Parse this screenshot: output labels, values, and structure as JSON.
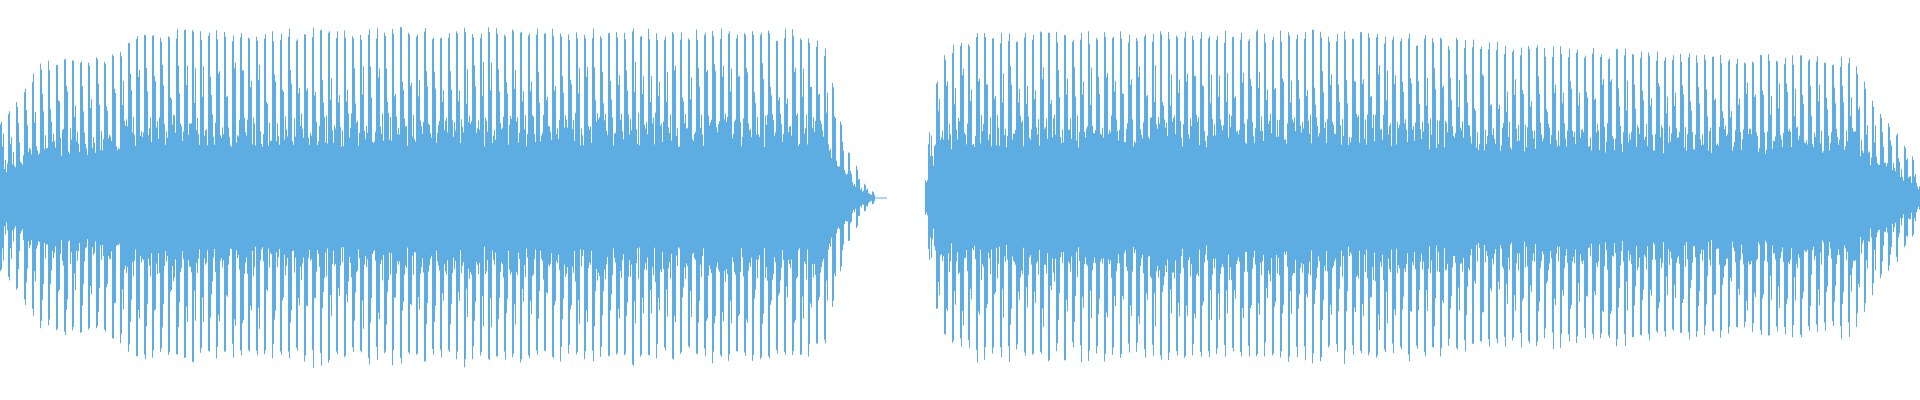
{
  "view": {
    "name": "audio-waveform",
    "background_color": "#ffffff",
    "wave_color": "#5dade2"
  },
  "segments": [
    {
      "name": "segment-1",
      "time_range": [
        0.0,
        0.455
      ],
      "envelope": [
        [
          0.0,
          0.44
        ],
        [
          0.01,
          0.55
        ],
        [
          0.02,
          0.75
        ],
        [
          0.04,
          0.78
        ],
        [
          0.06,
          0.8
        ],
        [
          0.07,
          0.93
        ],
        [
          0.2,
          0.94
        ],
        [
          0.35,
          0.94
        ],
        [
          0.42,
          0.93
        ],
        [
          0.43,
          0.84
        ],
        [
          0.435,
          0.6
        ],
        [
          0.44,
          0.3
        ],
        [
          0.445,
          0.2
        ],
        [
          0.45,
          0.08
        ],
        [
          0.455,
          0.03
        ]
      ]
    },
    {
      "name": "segment-2",
      "time_range": [
        0.482,
        1.0
      ],
      "envelope": [
        [
          0.482,
          0.2
        ],
        [
          0.486,
          0.55
        ],
        [
          0.49,
          0.8
        ],
        [
          0.5,
          0.9
        ],
        [
          0.52,
          0.92
        ],
        [
          0.6,
          0.92
        ],
        [
          0.7,
          0.93
        ],
        [
          0.72,
          0.92
        ],
        [
          0.8,
          0.84
        ],
        [
          0.9,
          0.8
        ],
        [
          0.965,
          0.78
        ],
        [
          0.975,
          0.55
        ],
        [
          0.985,
          0.4
        ],
        [
          0.995,
          0.25
        ],
        [
          1.0,
          0.12
        ]
      ]
    }
  ]
}
